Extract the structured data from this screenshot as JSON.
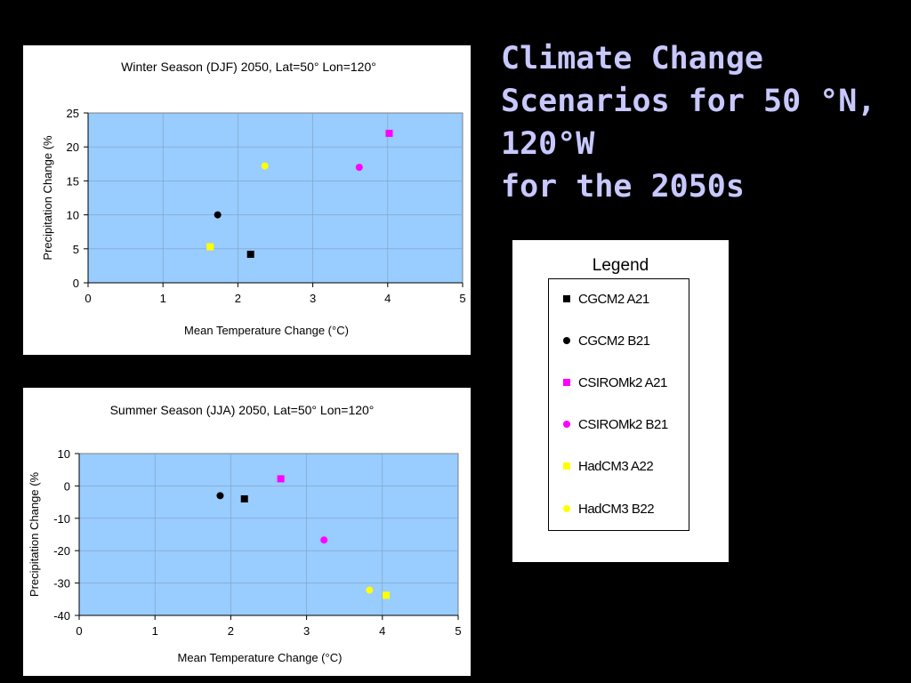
{
  "slide": {
    "title_lines": [
      "Climate Change",
      "Scenarios for 50 °N,",
      "120°W",
      "for the 2050s"
    ]
  },
  "legend": {
    "heading": "Legend",
    "items": [
      {
        "label": "CGCM2 A21",
        "marker": "square",
        "color": "#000000"
      },
      {
        "label": "CGCM2 B21",
        "marker": "circle",
        "color": "#000000"
      },
      {
        "label": "CSIROMk2 A21",
        "marker": "square",
        "color": "#ff00ff"
      },
      {
        "label": "CSIROMk2 B21",
        "marker": "circle",
        "color": "#ff00ff"
      },
      {
        "label": "HadCM3 A22",
        "marker": "square",
        "color": "#ffff00"
      },
      {
        "label": "HadCM3 B22",
        "marker": "circle",
        "color": "#ffff00"
      }
    ]
  },
  "chart_data": [
    {
      "type": "scatter",
      "title": "Winter Season (DJF) 2050, Lat=50° Lon=120°",
      "xlabel": "Mean Temperature Change (°C)",
      "ylabel": "Precipitation Change (%",
      "xlim": [
        0,
        5
      ],
      "ylim": [
        0,
        25
      ],
      "xticks": [
        0,
        1,
        2,
        3,
        4,
        5
      ],
      "yticks": [
        0,
        5,
        10,
        15,
        20,
        25
      ],
      "grid": true,
      "plot_bg": "#99ccff",
      "series": [
        {
          "name": "CGCM2 A21",
          "marker": "square",
          "color": "#000000",
          "x": 2.17,
          "y": 4.2
        },
        {
          "name": "CGCM2 B21",
          "marker": "circle",
          "color": "#000000",
          "x": 1.73,
          "y": 10.0
        },
        {
          "name": "CSIROMk2 A21",
          "marker": "square",
          "color": "#ff00ff",
          "x": 4.02,
          "y": 22.0
        },
        {
          "name": "CSIROMk2 B21",
          "marker": "circle",
          "color": "#ff00ff",
          "x": 3.62,
          "y": 17.0
        },
        {
          "name": "HadCM3 A22",
          "marker": "square",
          "color": "#ffff00",
          "x": 1.63,
          "y": 5.3
        },
        {
          "name": "HadCM3 B22",
          "marker": "circle",
          "color": "#ffff00",
          "x": 2.36,
          "y": 17.2
        }
      ]
    },
    {
      "type": "scatter",
      "title": "Summer Season (JJA) 2050, Lat=50° Lon=120°",
      "xlabel": "Mean Temperature Change (°C)",
      "ylabel": "Precipitation Change (%",
      "xlim": [
        0,
        5
      ],
      "ylim": [
        -40,
        10
      ],
      "xticks": [
        0,
        1,
        2,
        3,
        4,
        5
      ],
      "yticks": [
        -40,
        -30,
        -20,
        -10,
        0,
        10
      ],
      "grid": true,
      "plot_bg": "#99ccff",
      "series": [
        {
          "name": "CGCM2 A21",
          "marker": "square",
          "color": "#000000",
          "x": 2.18,
          "y": -4.0
        },
        {
          "name": "CGCM2 B21",
          "marker": "circle",
          "color": "#000000",
          "x": 1.86,
          "y": -3.0
        },
        {
          "name": "CSIROMk2 A21",
          "marker": "square",
          "color": "#ff00ff",
          "x": 2.66,
          "y": 2.2
        },
        {
          "name": "CSIROMk2 B21",
          "marker": "circle",
          "color": "#ff00ff",
          "x": 3.23,
          "y": -16.7
        },
        {
          "name": "HadCM3 A22",
          "marker": "square",
          "color": "#ffff00",
          "x": 4.05,
          "y": -33.8
        },
        {
          "name": "HadCM3 B22",
          "marker": "circle",
          "color": "#ffff00",
          "x": 3.83,
          "y": -32.2
        }
      ]
    }
  ]
}
